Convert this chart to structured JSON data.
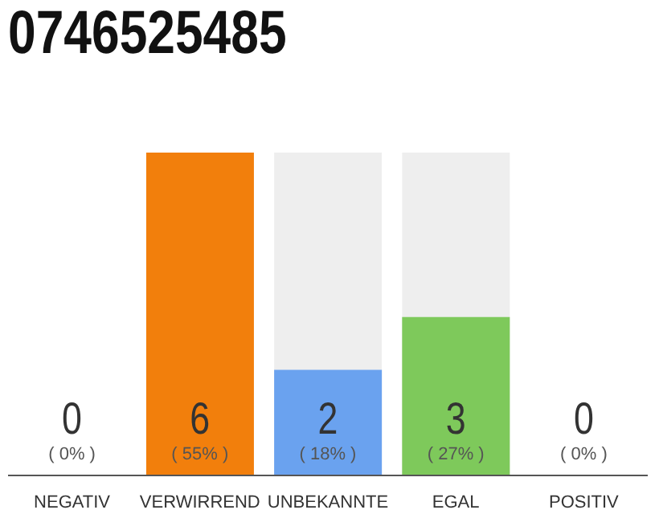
{
  "chart_data": {
    "type": "bar",
    "title": "0746525485",
    "categories": [
      "NEGATIV",
      "VERWIRREND",
      "UNBEKANNTE",
      "EGAL",
      "POSITIV"
    ],
    "values": [
      0,
      55,
      18,
      27,
      0
    ],
    "colors": [
      "#d9534f",
      "#f27f0c",
      "#6aa2ef",
      "#7ec95b",
      "#5cb85c"
    ],
    "value_labels": [
      "( 0% )",
      "( 55% )",
      "( 18% )",
      "( 27% )",
      "( 0% )"
    ],
    "annotations": [
      "0",
      "6",
      "2",
      "3",
      "0"
    ]
  }
}
